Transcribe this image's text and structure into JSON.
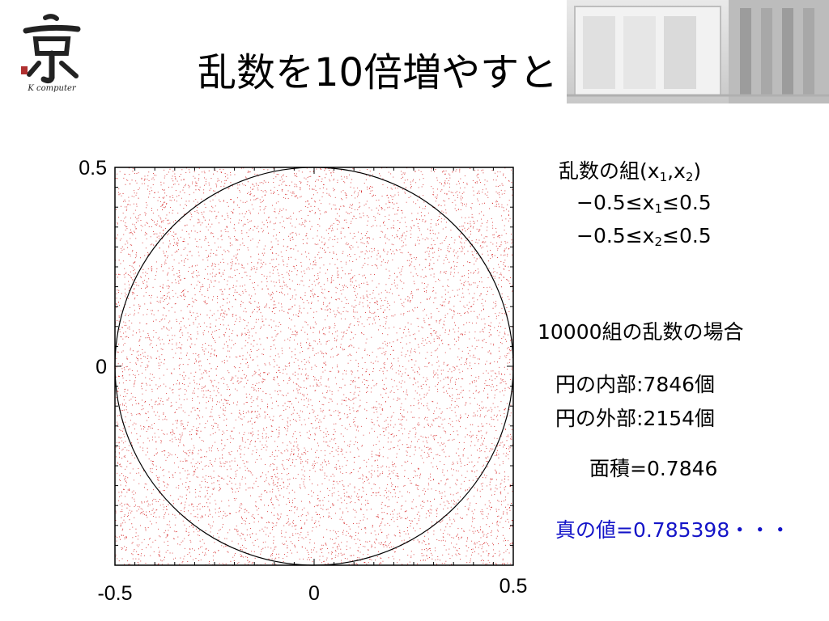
{
  "slide": {
    "title": "乱数を10倍増やすと",
    "logo_subtitle": "K computer",
    "logo_glyph": "京"
  },
  "info": {
    "pair_title": "乱数の組(x",
    "pair_sub1": "1",
    "pair_comma": ",x",
    "pair_sub2": "2",
    "pair_close": ")",
    "range1_prefix": "−0.5≤x",
    "range1_sub": "1",
    "range1_suffix": "≤0.5",
    "range2_prefix": "−0.5≤x",
    "range2_sub": "2",
    "range2_suffix": "≤0.5",
    "case_label": "10000組の乱数の場合",
    "inside_label": "円の内部:7846個",
    "outside_label": "円の外部:2154個",
    "area_label": "面積=0.7846",
    "true_value_label": "真の値=0.785398・・・"
  },
  "colors": {
    "point": "#d42020",
    "circle": "#000000",
    "true_value": "#1414c8"
  },
  "chart_data": {
    "type": "scatter",
    "title": "",
    "xlabel": "",
    "ylabel": "",
    "xlim": [
      -0.5,
      0.5
    ],
    "ylim": [
      -0.5,
      0.5
    ],
    "x_ticks": [
      {
        "value": -0.5,
        "label": "-0.5"
      },
      {
        "value": 0,
        "label": "0"
      },
      {
        "value": 0.5,
        "label": "0.5"
      }
    ],
    "y_ticks": [
      {
        "value": 0.5,
        "label": "0.5"
      },
      {
        "value": 0,
        "label": "0"
      }
    ],
    "grid": false,
    "circle": {
      "center": [
        0,
        0
      ],
      "radius": 0.5
    },
    "series": [
      {
        "total": 10000,
        "inside_count": 7846,
        "outside_count": 2154,
        "distribution": "uniform"
      }
    ]
  }
}
